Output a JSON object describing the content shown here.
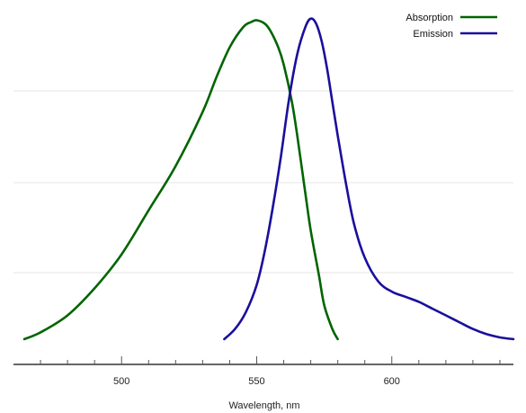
{
  "chart_data": {
    "type": "line",
    "title": "",
    "xlabel": "Wavelength, nm",
    "ylabel": "",
    "xlim": [
      460,
      645
    ],
    "ylim": [
      0,
      1.0
    ],
    "x_ticks": [
      500,
      550,
      600
    ],
    "x_tick_labels": [
      "500",
      "550",
      "600"
    ],
    "y_grid": [
      0.25,
      0.5,
      0.75
    ],
    "grid": true,
    "legend_position": "top-right",
    "series": [
      {
        "name": "Absorption",
        "color": "#006400",
        "x": [
          464,
          470,
          480,
          490,
          500,
          510,
          520,
          530,
          535,
          540,
          545,
          548,
          550,
          553,
          555,
          558,
          560,
          563,
          565,
          568,
          570,
          573,
          575,
          578,
          580
        ],
        "y": [
          0.04,
          0.06,
          0.11,
          0.19,
          0.29,
          0.42,
          0.55,
          0.71,
          0.81,
          0.9,
          0.96,
          0.975,
          0.98,
          0.97,
          0.95,
          0.9,
          0.85,
          0.74,
          0.64,
          0.47,
          0.36,
          0.23,
          0.14,
          0.07,
          0.04
        ]
      },
      {
        "name": "Emission",
        "color": "#1a0f9c",
        "x": [
          538,
          542,
          546,
          550,
          553,
          556,
          559,
          562,
          565,
          568,
          570,
          572,
          574,
          576,
          578,
          580,
          583,
          586,
          590,
          595,
          600,
          605,
          610,
          615,
          620,
          625,
          630,
          635,
          640,
          645
        ],
        "y": [
          0.04,
          0.07,
          0.12,
          0.2,
          0.3,
          0.43,
          0.58,
          0.75,
          0.88,
          0.96,
          0.985,
          0.97,
          0.92,
          0.84,
          0.74,
          0.64,
          0.5,
          0.38,
          0.28,
          0.21,
          0.18,
          0.165,
          0.15,
          0.13,
          0.11,
          0.09,
          0.07,
          0.055,
          0.045,
          0.04
        ]
      }
    ]
  }
}
